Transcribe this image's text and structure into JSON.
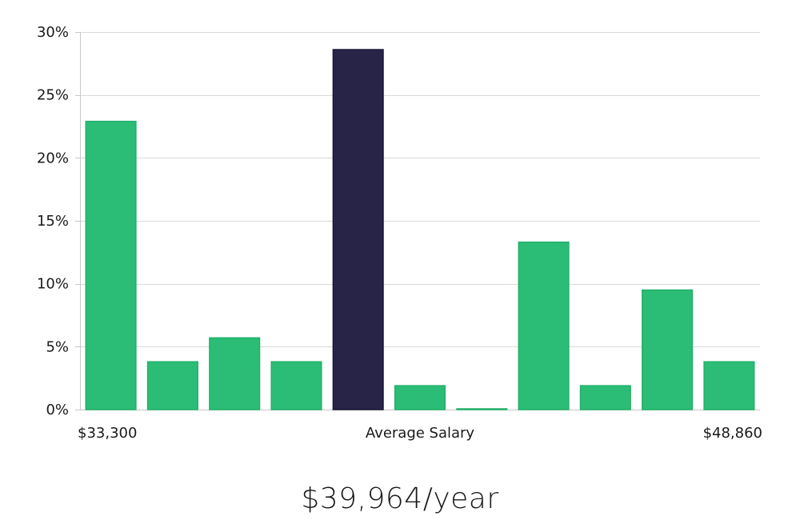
{
  "chart_data": {
    "type": "bar",
    "categories": [
      "1",
      "2",
      "3",
      "4",
      "5",
      "6",
      "7",
      "8",
      "9",
      "10",
      "11"
    ],
    "values": [
      22.9,
      3.8,
      5.7,
      3.8,
      28.6,
      1.9,
      0.0,
      13.3,
      1.9,
      9.5,
      3.8
    ],
    "highlight_index": 4,
    "ylim": [
      0,
      30
    ],
    "yticks": [
      "0%",
      "5%",
      "10%",
      "15%",
      "20%",
      "25%",
      "30%"
    ],
    "ytick_values": [
      0,
      5,
      10,
      15,
      20,
      25,
      30
    ],
    "x_labels": {
      "left": "$33,300",
      "center": "Average Salary",
      "right": "$48,860"
    },
    "grid": true,
    "colors": {
      "bar": "#2bbd76",
      "bar_stroke": "#23b06b",
      "highlight": "#282447",
      "highlight_stroke": "#1a1838"
    }
  },
  "summary": {
    "salary_text": "$39,964/year"
  }
}
